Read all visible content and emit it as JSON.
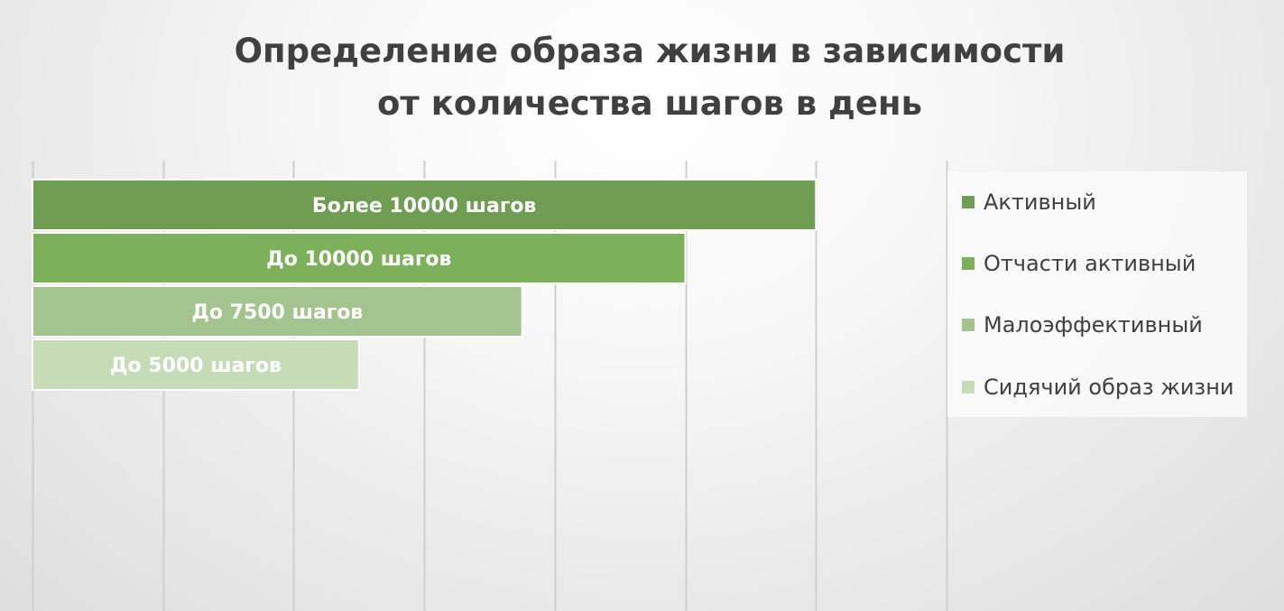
{
  "chart_data": {
    "type": "bar",
    "orientation": "horizontal",
    "title": "Определение образа жизни в зависимости от количества шагов в день",
    "title_lines": [
      "Определение образа жизни в зависимости",
      "от количества шагов в день"
    ],
    "categories": [
      "Более 10000 шагов",
      "До 10000 шагов",
      "До 7500 шагов",
      "До 5000 шагов"
    ],
    "values": [
      12000,
      10000,
      7500,
      5000
    ],
    "xlim": [
      0,
      14000
    ],
    "x_gridlines": [
      0,
      2000,
      4000,
      6000,
      8000,
      10000,
      12000,
      14000
    ],
    "y_gridlines": false,
    "axis_tick_labels_visible": false,
    "legend": {
      "position": "right",
      "entries": [
        "Активный",
        "Отчасти активный",
        "Малоэффективный",
        "Сидячий образ жизни"
      ]
    },
    "series_colors": [
      "#6f9e52",
      "#7db05b",
      "#a3c48e",
      "#c6dcb7"
    ],
    "data_label_color": "#ffffff",
    "title_color": "#404040"
  }
}
